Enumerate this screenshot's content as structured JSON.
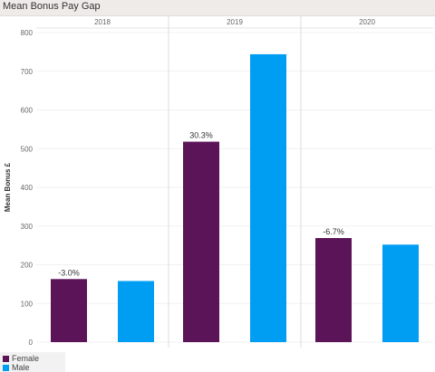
{
  "window": {
    "title": "Mean Bonus Pay Gap"
  },
  "chart_data": {
    "type": "bar",
    "title": "Mean Bonus Pay Gap",
    "xlabel": "",
    "ylabel": "Mean Bonus £",
    "ylim": [
      0,
      800
    ],
    "yticks": [
      0,
      100,
      200,
      300,
      400,
      500,
      600,
      700,
      800
    ],
    "facets": [
      "2018",
      "2019",
      "2020"
    ],
    "series": [
      {
        "name": "Female",
        "color": "#5c1459",
        "values": [
          163,
          518,
          269
        ]
      },
      {
        "name": "Male",
        "color": "#009ef2",
        "values": [
          158,
          744,
          252
        ]
      }
    ],
    "annotations": [
      "-3.0%",
      "30.3%",
      "-6.7%"
    ],
    "grid": true,
    "legend": "bottom-left"
  }
}
